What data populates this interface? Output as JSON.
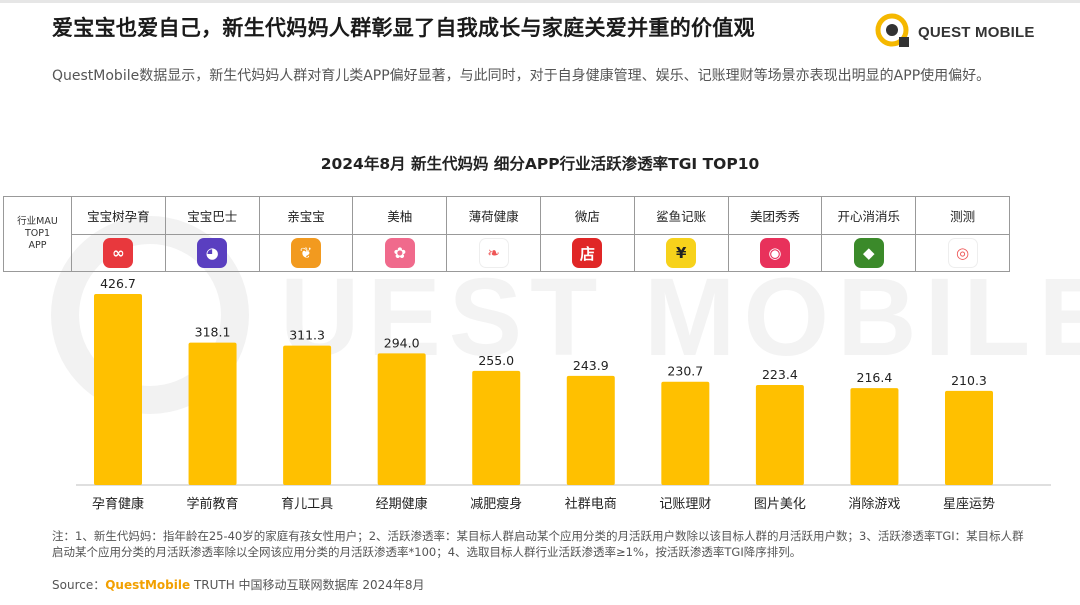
{
  "header": {
    "title": "爱宝宝也爱自己，新生代妈妈人群彰显了自我成长与家庭关爱并重的价值观",
    "brand": "QUEST MOBILE",
    "description": "QuestMobile数据显示，新生代妈妈人群对育儿类APP偏好显著，与此同时，对于自身健康管理、娱乐、记账理财等场景亦表现出明显的APP使用偏好。"
  },
  "table": {
    "row_header": [
      "行业MAU",
      "TOP1",
      "APP"
    ],
    "apps": [
      {
        "name": "宝宝树孕育",
        "icon": "baby-tree-icon",
        "color": "#e8383d",
        "glyph": "∞"
      },
      {
        "name": "宝宝巴士",
        "icon": "baby-bus-icon",
        "color": "#5a3fc0",
        "glyph": "◕"
      },
      {
        "name": "亲宝宝",
        "icon": "sprout-icon",
        "color": "#f29a1f",
        "glyph": "❦"
      },
      {
        "name": "美柚",
        "icon": "grapefruit-icon",
        "color": "#f06a8c",
        "glyph": "✿"
      },
      {
        "name": "薄荷健康",
        "icon": "mint-leaf-icon",
        "color": "#ffffff",
        "glyph": "❧"
      },
      {
        "name": "微店",
        "icon": "shop-icon",
        "color": "#e02626",
        "glyph": "店"
      },
      {
        "name": "鲨鱼记账",
        "icon": "yen-icon",
        "color": "#f7d21b",
        "glyph": "¥"
      },
      {
        "name": "美团秀秀",
        "icon": "camera-icon",
        "color": "#e8315b",
        "glyph": "◉"
      },
      {
        "name": "开心消消乐",
        "icon": "chick-icon",
        "color": "#3b8a2a",
        "glyph": "◆"
      },
      {
        "name": "测测",
        "icon": "owl-icon",
        "color": "#ffffff",
        "glyph": "◎"
      }
    ]
  },
  "chart_data": {
    "type": "bar",
    "title": "2024年8月  新生代妈妈 细分APP行业活跃渗透率TGI TOP10",
    "categories": [
      "孕育健康",
      "学前教育",
      "育儿工具",
      "经期健康",
      "减肥瘦身",
      "社群电商",
      "记账理财",
      "图片美化",
      "消除游戏",
      "星座运势"
    ],
    "values": [
      426.7,
      318.1,
      311.3,
      294.0,
      255.0,
      243.9,
      230.7,
      223.4,
      216.4,
      210.3
    ],
    "value_labels": [
      "426.7",
      "318.1",
      "311.3",
      "294.0",
      "255.0",
      "243.9",
      "230.7",
      "223.4",
      "216.4",
      "210.3"
    ],
    "bar_color": "#ffc000",
    "ylim": [
      0,
      426.7
    ],
    "grid": false,
    "xlabel": "",
    "ylabel": ""
  },
  "footer": {
    "note": "注：1、新生代妈妈：指年龄在25-40岁的家庭有孩女性用户；2、活跃渗透率：某目标人群启动某个应用分类的月活跃用户数除以该目标人群的月活跃用户数；3、活跃渗透率TGI：某目标人群启动某个应用分类的月活跃渗透率除以全网该应用分类的月活跃渗透率*100；4、选取目标人群行业活跃渗透率≥1%，按活跃渗透率TGI降序排列。",
    "source_prefix": "Source：",
    "source_brand": "QuestMobile",
    "source_rest": " TRUTH 中国移动互联网数据库 2024年8月"
  }
}
